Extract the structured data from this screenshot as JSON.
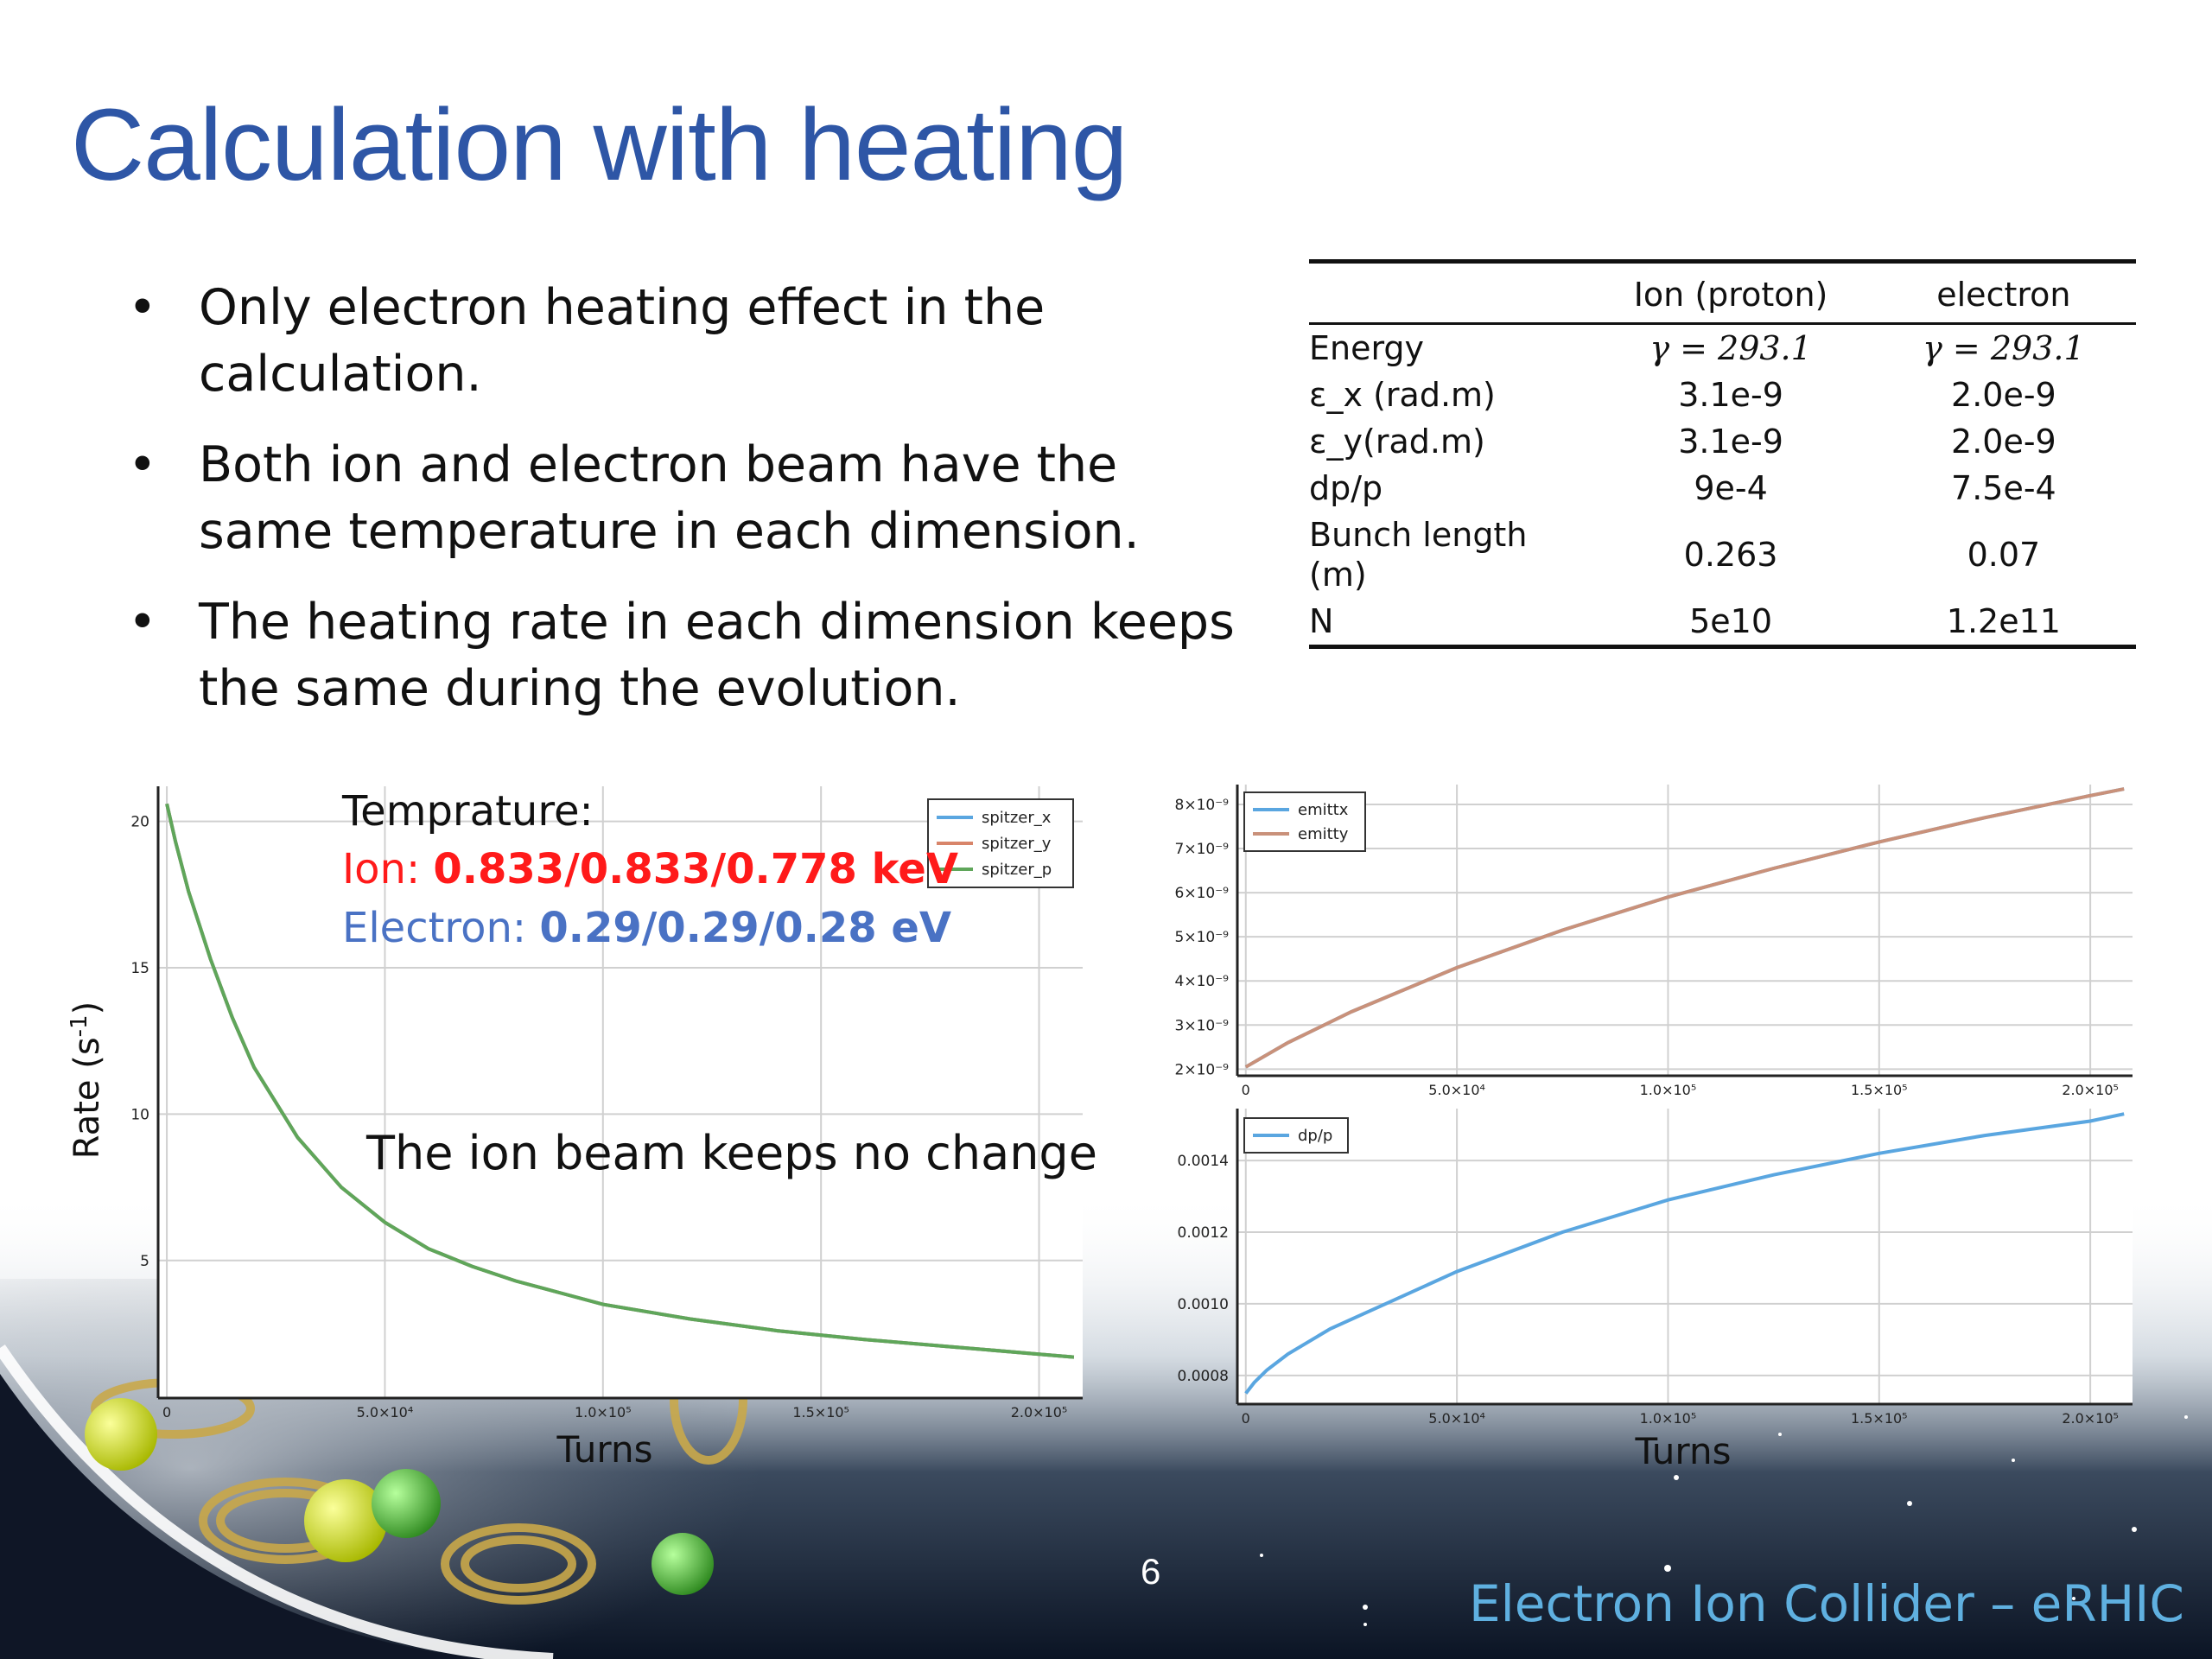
{
  "slide": {
    "title": "Calculation with heating",
    "bullets": [
      {
        "bullet": "•",
        "text": "Only electron heating effect in the calculation."
      },
      {
        "bullet": "•",
        "text": "Both ion and electron beam have the same temperature in each dimension."
      },
      {
        "bullet": "•",
        "text": "The heating rate in each dimension keeps the same during the evolution."
      }
    ],
    "page_number": "6",
    "footer": "Electron Ion Collider – eRHIC"
  },
  "table": {
    "headers": [
      "",
      "Ion (proton)",
      "electron"
    ],
    "rows": [
      [
        "Energy",
        "γ = 293.1",
        "γ = 293.1"
      ],
      [
        "ε_x (rad.m)",
        "3.1e-9",
        "2.0e-9"
      ],
      [
        "ε_y(rad.m)",
        "3.1e-9",
        "2.0e-9"
      ],
      [
        "dp/p",
        "9e-4",
        "7.5e-4"
      ],
      [
        "Bunch length (m)",
        "0.263",
        "0.07"
      ],
      [
        "N",
        "5e10",
        "1.2e11"
      ]
    ]
  },
  "annotations": {
    "temp_label": "Temprature:",
    "ion_prefix": "Ion:  ",
    "ion_values": "0.833/0.833/0.778 keV",
    "electron_prefix": "Electron: ",
    "electron_values": "0.29/0.29/0.28 eV",
    "note": "The ion beam keeps no change",
    "ion_color": "#ff1a1a",
    "electron_color": "#4a72c4"
  },
  "chart_data": [
    {
      "type": "line",
      "xlabel": "Turns",
      "ylabel": "Rate (s-1)",
      "ylabel_main": "Rate (s",
      "ylabel_sup": "-1",
      "ylabel_close": ")",
      "xlim": [
        -2000,
        210000
      ],
      "ylim": [
        0.3,
        21.2
      ],
      "xticks": [
        0,
        50000,
        100000,
        150000,
        200000
      ],
      "xtick_labels": [
        "0",
        "5.0×10⁴",
        "1.0×10⁵",
        "1.5×10⁵",
        "2.0×10⁵"
      ],
      "yticks": [
        5,
        10,
        15,
        20
      ],
      "ytick_labels": [
        "5",
        "10",
        "15",
        "20"
      ],
      "grid": true,
      "legend": "top-right",
      "x": [
        0,
        2000,
        5000,
        10000,
        15000,
        20000,
        30000,
        40000,
        50000,
        60000,
        70000,
        80000,
        90000,
        100000,
        120000,
        140000,
        160000,
        180000,
        200000,
        208000
      ],
      "series": [
        {
          "name": "spitzer_x",
          "color": "#5aa6e0",
          "values": [
            20.6,
            19.3,
            17.6,
            15.3,
            13.3,
            11.6,
            9.2,
            7.5,
            6.3,
            5.4,
            4.8,
            4.3,
            3.9,
            3.5,
            3.0,
            2.6,
            2.3,
            2.05,
            1.8,
            1.7
          ]
        },
        {
          "name": "spitzer_y",
          "color": "#d8856a",
          "values": [
            20.6,
            19.3,
            17.6,
            15.3,
            13.3,
            11.6,
            9.2,
            7.5,
            6.3,
            5.4,
            4.8,
            4.3,
            3.9,
            3.5,
            3.0,
            2.6,
            2.3,
            2.05,
            1.8,
            1.7
          ]
        },
        {
          "name": "spitzer_p",
          "color": "#5fa65a",
          "values": [
            20.6,
            19.3,
            17.6,
            15.3,
            13.3,
            11.6,
            9.2,
            7.5,
            6.3,
            5.4,
            4.8,
            4.3,
            3.9,
            3.5,
            3.0,
            2.6,
            2.3,
            2.05,
            1.8,
            1.7
          ]
        }
      ]
    },
    {
      "type": "line",
      "xlabel": "",
      "ylabel": "",
      "xlim": [
        -2000,
        210000
      ],
      "ylim": [
        1.85e-09,
        8.45e-09
      ],
      "xticks": [
        0,
        50000,
        100000,
        150000,
        200000
      ],
      "xtick_labels": [
        "0",
        "5.0×10⁴",
        "1.0×10⁵",
        "1.5×10⁵",
        "2.0×10⁵"
      ],
      "yticks": [
        2e-09,
        3e-09,
        4e-09,
        5e-09,
        6e-09,
        7e-09,
        8e-09
      ],
      "ytick_labels": [
        "2×10⁻⁹",
        "3×10⁻⁹",
        "4×10⁻⁹",
        "5×10⁻⁹",
        "6×10⁻⁹",
        "7×10⁻⁹",
        "8×10⁻⁹"
      ],
      "grid": true,
      "legend": "top-left",
      "x": [
        0,
        10000,
        25000,
        50000,
        75000,
        100000,
        125000,
        150000,
        175000,
        200000,
        208000
      ],
      "series": [
        {
          "name": "emittx",
          "color": "#5aa6e0",
          "values": [
            2.05e-09,
            2.6e-09,
            3.3e-09,
            4.3e-09,
            5.15e-09,
            5.9e-09,
            6.55e-09,
            7.15e-09,
            7.7e-09,
            8.2e-09,
            8.35e-09
          ]
        },
        {
          "name": "emitty",
          "color": "#c9917a",
          "values": [
            2.05e-09,
            2.6e-09,
            3.3e-09,
            4.3e-09,
            5.15e-09,
            5.9e-09,
            6.55e-09,
            7.15e-09,
            7.7e-09,
            8.2e-09,
            8.35e-09
          ]
        }
      ]
    },
    {
      "type": "line",
      "xlabel": "Turns",
      "ylabel": "",
      "xlim": [
        -2000,
        210000
      ],
      "ylim": [
        0.00072,
        0.001545
      ],
      "xticks": [
        0,
        50000,
        100000,
        150000,
        200000
      ],
      "xtick_labels": [
        "0",
        "5.0×10⁴",
        "1.0×10⁵",
        "1.5×10⁵",
        "2.0×10⁵"
      ],
      "yticks": [
        0.0008,
        0.001,
        0.0012,
        0.0014
      ],
      "ytick_labels": [
        "0.0008",
        "0.0010",
        "0.0012",
        "0.0014"
      ],
      "grid": true,
      "legend": "top-left",
      "x": [
        0,
        2000,
        5000,
        10000,
        20000,
        35000,
        50000,
        75000,
        100000,
        125000,
        150000,
        175000,
        200000,
        208000
      ],
      "series": [
        {
          "name": "dp/p",
          "color": "#5aa6e0",
          "values": [
            0.00075,
            0.00078,
            0.000815,
            0.00086,
            0.00093,
            0.00101,
            0.00109,
            0.0012,
            0.00129,
            0.00136,
            0.00142,
            0.00147,
            0.00151,
            0.00153
          ]
        }
      ]
    }
  ]
}
